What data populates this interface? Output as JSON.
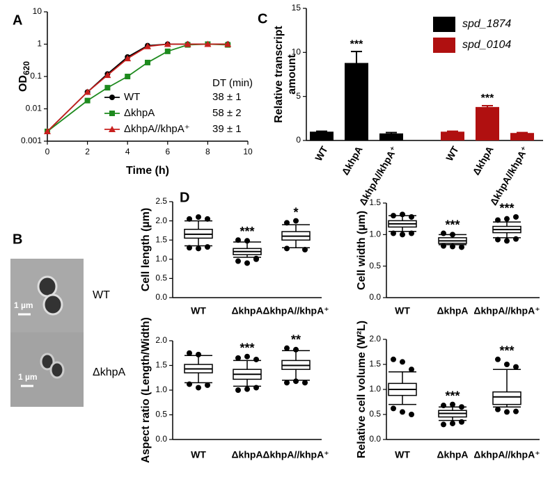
{
  "chart_data": [
    {
      "type": "line",
      "panel": "A",
      "x_label": "Time (h)",
      "y_label": "OD",
      "y_label_subscript": "620",
      "log_y": true,
      "x": [
        0,
        2,
        3,
        4,
        5,
        6,
        7,
        8,
        9
      ],
      "xlim": [
        0,
        10
      ],
      "xticks": [
        0,
        2,
        4,
        6,
        8,
        10
      ],
      "ylim": [
        0.001,
        10
      ],
      "yticks": [
        0.001,
        0.01,
        0.1,
        1,
        10
      ],
      "annotation_header": "DT (min)",
      "series": [
        {
          "name": "WT",
          "color": "#000000",
          "marker": "circle",
          "annotation": "38 ± 1",
          "values": [
            0.002,
            0.033,
            0.12,
            0.4,
            0.9,
            1.0,
            1.0,
            1.0,
            1.0
          ]
        },
        {
          "name": "ΔkhpA",
          "color": "#1e8a1e",
          "marker": "square",
          "annotation": "58 ± 2",
          "values": [
            0.002,
            0.018,
            0.045,
            0.1,
            0.27,
            0.6,
            0.95,
            1.0,
            0.95
          ]
        },
        {
          "name": "ΔkhpA//khpA⁺",
          "color": "#c8201e",
          "marker": "triangle",
          "annotation": "39 ± 1",
          "values": [
            0.002,
            0.033,
            0.11,
            0.36,
            0.85,
            1.0,
            1.0,
            1.0,
            1.0
          ]
        }
      ]
    },
    {
      "type": "bar",
      "panel": "C",
      "y_label": [
        "Relative transcript",
        "amount"
      ],
      "categories": [
        "WT",
        "ΔkhpA",
        "ΔkhpA//khpA⁺"
      ],
      "ylim": [
        0,
        15
      ],
      "yticks": [
        0,
        5,
        10,
        15
      ],
      "series": [
        {
          "name": "spd_1874",
          "color": "#000000",
          "values": [
            1,
            8.8,
            0.8
          ],
          "errors": [
            0.05,
            1.3,
            0.1
          ],
          "significance": [
            null,
            "***",
            null
          ]
        },
        {
          "name": "spd_0104",
          "color": "#b01010",
          "values": [
            1,
            3.8,
            0.85
          ],
          "errors": [
            0.05,
            0.15,
            0.05
          ],
          "significance": [
            null,
            "***",
            null
          ]
        }
      ]
    },
    {
      "type": "box",
      "panel": "D",
      "y_label": "Cell length (µm)",
      "categories": [
        "WT",
        "ΔkhpA",
        "ΔkhpA//khpA⁺"
      ],
      "ylim": [
        0,
        2.5
      ],
      "yticks": [
        {
          "value": 0,
          "label": "0.0"
        },
        0.5,
        {
          "value": 1,
          "label": "1.0"
        },
        1.5,
        {
          "value": 2,
          "label": "2.0"
        },
        2.5
      ],
      "boxes": [
        {
          "min": 1.35,
          "q1": 1.55,
          "median": 1.65,
          "q3": 1.78,
          "max": 2.0,
          "outliers": [
            2.05,
            2.1,
            2.05,
            1.3,
            1.28,
            1.32
          ],
          "significance": null
        },
        {
          "min": 1.05,
          "q1": 1.12,
          "median": 1.2,
          "q3": 1.28,
          "max": 1.45,
          "outliers": [
            1.5,
            1.48,
            1.0,
            0.95,
            0.9,
            1.02
          ],
          "significance": "***"
        },
        {
          "min": 1.3,
          "q1": 1.5,
          "median": 1.6,
          "q3": 1.72,
          "max": 1.9,
          "outliers": [
            1.95,
            2.0,
            1.25,
            1.28
          ],
          "significance": "*"
        }
      ]
    },
    {
      "type": "box",
      "y_label": "Cell width (µm)",
      "categories": [
        "WT",
        "ΔkhpA",
        "ΔkhpA//khpA⁺"
      ],
      "ylim": [
        0,
        1.5
      ],
      "yticks": [
        {
          "value": 0,
          "label": "0.0"
        },
        0.5,
        {
          "value": 1,
          "label": "1.0"
        },
        1.5
      ],
      "boxes": [
        {
          "min": 1.05,
          "q1": 1.12,
          "median": 1.17,
          "q3": 1.22,
          "max": 1.3,
          "outliers": [
            1.3,
            1.32,
            1.28,
            1.02,
            1.0,
            1.02
          ],
          "significance": null
        },
        {
          "min": 0.84,
          "q1": 0.86,
          "median": 0.9,
          "q3": 0.95,
          "max": 1.0,
          "outliers": [
            1.02,
            1.0,
            0.8,
            0.82,
            0.81
          ],
          "significance": "***"
        },
        {
          "min": 0.95,
          "q1": 1.03,
          "median": 1.08,
          "q3": 1.13,
          "max": 1.2,
          "outliers": [
            1.23,
            1.25,
            1.28,
            0.92,
            0.9,
            0.93
          ],
          "significance": "***"
        }
      ]
    },
    {
      "type": "box",
      "y_label": "Aspect ratio (Length/Width)",
      "categories": [
        "WT",
        "ΔkhpA",
        "ΔkhpA//khpA⁺"
      ],
      "ylim": [
        0,
        2
      ],
      "yticks": [
        {
          "value": 0,
          "label": "0.0"
        },
        0.5,
        {
          "value": 1,
          "label": "1.0"
        },
        1.5,
        {
          "value": 2,
          "label": "2.0"
        }
      ],
      "boxes": [
        {
          "min": 1.15,
          "q1": 1.35,
          "median": 1.43,
          "q3": 1.52,
          "max": 1.7,
          "outliers": [
            1.75,
            1.72,
            1.1,
            1.12,
            1.05
          ],
          "significance": null
        },
        {
          "min": 1.08,
          "q1": 1.22,
          "median": 1.32,
          "q3": 1.42,
          "max": 1.6,
          "outliers": [
            1.65,
            1.68,
            1.62,
            1.0,
            1.02,
            1.05
          ],
          "significance": "***"
        },
        {
          "min": 1.2,
          "q1": 1.42,
          "median": 1.5,
          "q3": 1.6,
          "max": 1.8,
          "outliers": [
            1.85,
            1.82,
            1.15,
            1.15,
            1.18
          ],
          "significance": "**"
        }
      ]
    },
    {
      "type": "box",
      "y_label": "Relative cell volume (W²L)",
      "categories": [
        "WT",
        "ΔkhpA",
        "ΔkhpA//khpA⁺"
      ],
      "ylim": [
        0,
        2
      ],
      "yticks": [
        {
          "value": 0,
          "label": "0.0"
        },
        0.5,
        {
          "value": 1,
          "label": "1.0"
        },
        1.5,
        {
          "value": 2,
          "label": "2.0"
        }
      ],
      "boxes": [
        {
          "min": 0.7,
          "q1": 0.88,
          "median": 1.0,
          "q3": 1.12,
          "max": 1.35,
          "outliers": [
            1.6,
            1.55,
            1.4,
            0.62,
            0.55,
            0.5
          ],
          "significance": null
        },
        {
          "min": 0.38,
          "q1": 0.45,
          "median": 0.52,
          "q3": 0.58,
          "max": 0.65,
          "outliers": [
            0.68,
            0.7,
            0.65,
            0.3,
            0.32,
            0.35
          ],
          "significance": "***"
        },
        {
          "min": 0.65,
          "q1": 0.7,
          "median": 0.85,
          "q3": 0.95,
          "max": 1.4,
          "outliers": [
            1.6,
            1.5,
            1.45,
            0.6,
            0.55,
            0.56
          ],
          "significance": "***"
        }
      ]
    }
  ],
  "image_panel": {
    "label": "B",
    "rows": [
      {
        "name": "WT",
        "scale_bar": "1 µm"
      },
      {
        "name": "ΔkhpA",
        "scale_bar": "1 µm"
      }
    ]
  }
}
